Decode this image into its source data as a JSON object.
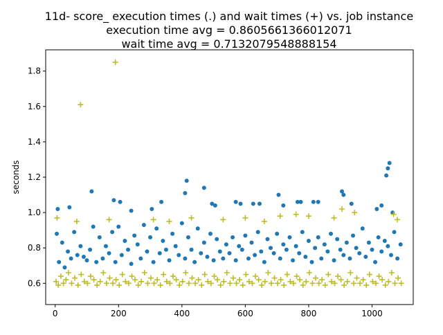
{
  "chart_data": {
    "type": "scatter",
    "title": [
      "11d- score_ execution times (.) and wait times (+) vs. job instance",
      "execution time avg = 0.8605661366012071",
      "wait time avg = 0.7132079548888154"
    ],
    "xlabel": "",
    "ylabel": "seconds",
    "xlim": [
      -30,
      1130
    ],
    "ylim": [
      0.48,
      1.92
    ],
    "xticks": [
      0,
      200,
      400,
      600,
      800,
      1000
    ],
    "yticks": [
      0.6,
      0.8,
      1.0,
      1.2,
      1.4,
      1.6,
      1.8
    ],
    "ytick_labels": [
      "0.6",
      "0.8",
      "1.0",
      "1.2",
      "1.4",
      "1.6",
      "1.8"
    ],
    "grid": false,
    "series": [
      {
        "marker": "dot",
        "color": "#1f77b4",
        "x": [
          5,
          12,
          22,
          30,
          40,
          50,
          60,
          70,
          80,
          90,
          100,
          110,
          120,
          130,
          140,
          150,
          160,
          170,
          180,
          190,
          200,
          210,
          220,
          230,
          240,
          250,
          260,
          270,
          280,
          290,
          300,
          310,
          320,
          330,
          340,
          350,
          360,
          370,
          380,
          390,
          400,
          410,
          420,
          430,
          440,
          450,
          460,
          470,
          480,
          490,
          500,
          510,
          520,
          530,
          540,
          550,
          560,
          570,
          580,
          590,
          600,
          610,
          620,
          630,
          640,
          650,
          660,
          670,
          680,
          690,
          700,
          710,
          720,
          730,
          740,
          750,
          760,
          770,
          780,
          790,
          800,
          810,
          820,
          830,
          840,
          850,
          860,
          870,
          880,
          890,
          900,
          910,
          920,
          930,
          940,
          950,
          960,
          970,
          980,
          990,
          1000,
          1010,
          1020,
          1030,
          1040,
          1050,
          1060,
          1070,
          1080,
          1090,
          8,
          45,
          115,
          185,
          205,
          240,
          305,
          335,
          410,
          415,
          470,
          495,
          505,
          570,
          585,
          625,
          645,
          705,
          720,
          765,
          775,
          815,
          830,
          905,
          910,
          935,
          1015,
          1030,
          1045,
          1050,
          1055,
          1065
        ],
        "y": [
          0.88,
          0.72,
          0.83,
          0.69,
          0.78,
          0.74,
          0.89,
          0.76,
          0.81,
          0.75,
          0.73,
          0.79,
          0.92,
          0.72,
          0.86,
          0.74,
          0.81,
          0.77,
          0.89,
          0.72,
          0.92,
          0.76,
          0.84,
          0.79,
          0.71,
          0.87,
          0.82,
          0.74,
          0.93,
          0.78,
          0.86,
          0.72,
          0.91,
          0.77,
          0.84,
          0.79,
          0.73,
          0.88,
          0.81,
          0.76,
          0.94,
          0.74,
          0.86,
          0.79,
          0.72,
          0.91,
          0.77,
          0.83,
          0.75,
          0.88,
          0.73,
          0.85,
          0.78,
          0.74,
          0.82,
          0.77,
          0.86,
          0.73,
          0.81,
          0.79,
          0.87,
          0.74,
          0.83,
          0.76,
          0.89,
          0.78,
          0.72,
          0.85,
          0.8,
          0.77,
          0.88,
          0.74,
          0.82,
          0.79,
          0.86,
          0.73,
          0.81,
          0.77,
          0.89,
          0.75,
          0.84,
          0.72,
          0.8,
          0.86,
          0.74,
          0.82,
          0.78,
          0.88,
          0.73,
          0.85,
          0.79,
          0.76,
          0.83,
          0.74,
          0.87,
          0.8,
          0.77,
          0.91,
          0.75,
          0.83,
          0.79,
          0.72,
          0.86,
          0.78,
          0.84,
          0.81,
          0.76,
          0.89,
          0.74,
          0.82,
          1.02,
          1.03,
          1.12,
          1.07,
          1.06,
          1.01,
          1.02,
          1.06,
          1.11,
          1.18,
          1.14,
          1.05,
          1.04,
          1.06,
          1.05,
          1.05,
          1.05,
          1.1,
          1.04,
          1.06,
          1.06,
          1.06,
          1.06,
          1.12,
          1.1,
          1.05,
          1.02,
          1.04,
          1.21,
          1.25,
          1.28,
          1.0
        ]
      },
      {
        "marker": "plus",
        "color": "#bcbd22",
        "x": [
          3,
          10,
          18,
          26,
          34,
          42,
          52,
          62,
          72,
          82,
          92,
          102,
          112,
          122,
          132,
          142,
          152,
          162,
          172,
          182,
          192,
          202,
          212,
          222,
          232,
          242,
          252,
          262,
          272,
          282,
          292,
          302,
          312,
          322,
          332,
          342,
          352,
          362,
          372,
          382,
          392,
          402,
          412,
          422,
          432,
          442,
          452,
          462,
          472,
          482,
          492,
          502,
          512,
          522,
          532,
          542,
          552,
          562,
          572,
          582,
          592,
          602,
          612,
          622,
          632,
          642,
          652,
          662,
          672,
          682,
          692,
          702,
          712,
          722,
          732,
          742,
          752,
          762,
          772,
          782,
          792,
          802,
          812,
          822,
          832,
          842,
          852,
          862,
          872,
          882,
          892,
          902,
          912,
          922,
          932,
          942,
          952,
          962,
          972,
          982,
          992,
          1002,
          1012,
          1022,
          1032,
          1042,
          1052,
          1062,
          1072,
          1082,
          1092,
          80,
          190,
          6,
          68,
          170,
          310,
          360,
          430,
          530,
          600,
          660,
          710,
          760,
          800,
          880,
          905,
          945,
          1068,
          1080
        ],
        "y": [
          0.61,
          0.59,
          0.64,
          0.6,
          0.62,
          0.66,
          0.6,
          0.63,
          0.59,
          0.65,
          0.61,
          0.6,
          0.64,
          0.62,
          0.59,
          0.61,
          0.66,
          0.6,
          0.63,
          0.6,
          0.62,
          0.59,
          0.65,
          0.61,
          0.6,
          0.64,
          0.62,
          0.59,
          0.61,
          0.66,
          0.6,
          0.63,
          0.6,
          0.62,
          0.59,
          0.65,
          0.61,
          0.6,
          0.64,
          0.62,
          0.59,
          0.61,
          0.66,
          0.6,
          0.63,
          0.6,
          0.62,
          0.59,
          0.65,
          0.61,
          0.6,
          0.64,
          0.62,
          0.59,
          0.61,
          0.66,
          0.6,
          0.63,
          0.6,
          0.62,
          0.59,
          0.65,
          0.61,
          0.6,
          0.64,
          0.62,
          0.59,
          0.61,
          0.66,
          0.6,
          0.63,
          0.6,
          0.62,
          0.59,
          0.65,
          0.61,
          0.6,
          0.64,
          0.62,
          0.59,
          0.61,
          0.66,
          0.6,
          0.63,
          0.6,
          0.62,
          0.59,
          0.65,
          0.61,
          0.6,
          0.64,
          0.62,
          0.59,
          0.61,
          0.66,
          0.6,
          0.63,
          0.6,
          0.62,
          0.59,
          0.65,
          0.61,
          0.6,
          0.64,
          0.62,
          0.59,
          0.61,
          0.66,
          0.6,
          0.63,
          0.6,
          1.61,
          1.85,
          0.97,
          0.95,
          0.96,
          0.96,
          0.95,
          0.97,
          0.96,
          0.97,
          0.95,
          0.98,
          0.99,
          0.98,
          0.97,
          1.02,
          1.0,
          0.99,
          0.96
        ]
      }
    ]
  }
}
